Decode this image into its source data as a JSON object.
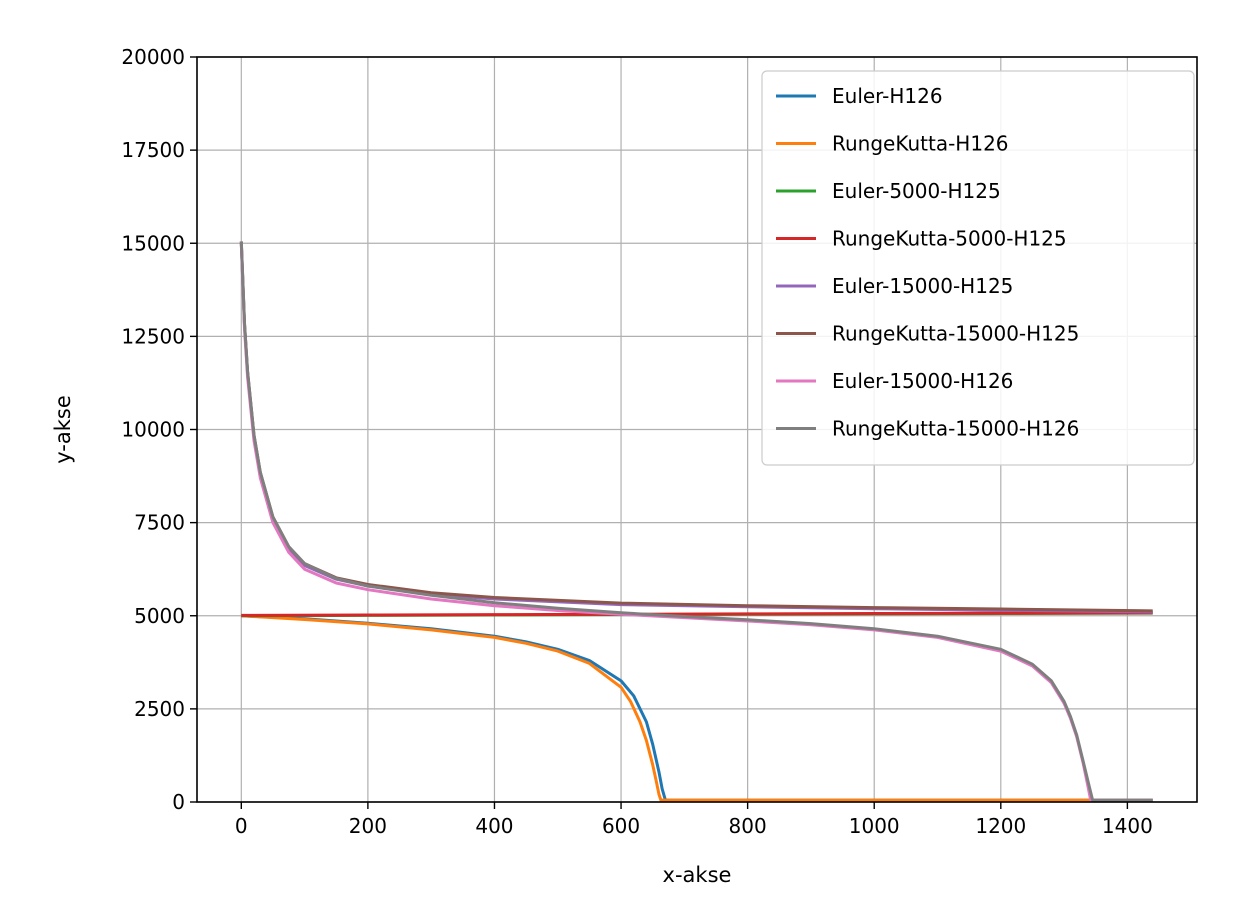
{
  "chart_data": {
    "type": "line",
    "xlabel": "x-akse",
    "ylabel": "y-akse",
    "xlim": [
      -70,
      1510
    ],
    "ylim": [
      0,
      20000
    ],
    "xticks": [
      0,
      200,
      400,
      600,
      800,
      1000,
      1200,
      1400
    ],
    "yticks": [
      0,
      2500,
      5000,
      7500,
      10000,
      12500,
      15000,
      17500,
      20000
    ],
    "grid": true,
    "legend_position": "top-right",
    "series": [
      {
        "name": "Euler-H126",
        "color": "#1f77b4",
        "x": [
          0,
          100,
          200,
          300,
          400,
          450,
          500,
          550,
          600,
          620,
          640,
          650,
          660,
          665,
          670,
          700,
          800,
          1000,
          1200,
          1440
        ],
        "y": [
          5000,
          4920,
          4800,
          4650,
          4450,
          4300,
          4100,
          3800,
          3250,
          2850,
          2150,
          1550,
          800,
          350,
          50,
          50,
          50,
          50,
          50,
          50
        ]
      },
      {
        "name": "RungeKutta-H126",
        "color": "#ff7f0e",
        "x": [
          0,
          100,
          200,
          300,
          400,
          450,
          500,
          550,
          600,
          615,
          630,
          640,
          650,
          655,
          660,
          663,
          700,
          800,
          1000,
          1200,
          1440
        ],
        "y": [
          5000,
          4900,
          4780,
          4620,
          4420,
          4260,
          4050,
          3720,
          3080,
          2700,
          2150,
          1650,
          1000,
          600,
          200,
          50,
          50,
          50,
          50,
          50,
          50
        ]
      },
      {
        "name": "Euler-5000-H125",
        "color": "#2ca02c",
        "x": [
          0,
          200,
          400,
          600,
          800,
          1000,
          1200,
          1440
        ],
        "y": [
          5000,
          5010,
          5020,
          5030,
          5040,
          5050,
          5060,
          5070
        ]
      },
      {
        "name": "RungeKutta-5000-H125",
        "color": "#d62728",
        "x": [
          0,
          200,
          400,
          600,
          800,
          1000,
          1200,
          1440
        ],
        "y": [
          5010,
          5020,
          5030,
          5040,
          5050,
          5060,
          5070,
          5080
        ]
      },
      {
        "name": "Euler-15000-H125",
        "color": "#9467bd",
        "x": [
          0,
          5,
          10,
          20,
          30,
          50,
          75,
          100,
          150,
          200,
          300,
          400,
          600,
          800,
          1000,
          1200,
          1440
        ],
        "y": [
          15000,
          12800,
          11500,
          9800,
          8800,
          7600,
          6800,
          6350,
          5980,
          5800,
          5580,
          5450,
          5300,
          5240,
          5190,
          5150,
          5100
        ]
      },
      {
        "name": "RungeKutta-15000-H125",
        "color": "#8c564b",
        "x": [
          0,
          5,
          10,
          20,
          30,
          50,
          75,
          100,
          150,
          200,
          300,
          400,
          600,
          800,
          1000,
          1200,
          1440
        ],
        "y": [
          15050,
          12850,
          11550,
          9850,
          8850,
          7650,
          6850,
          6400,
          6020,
          5840,
          5620,
          5490,
          5340,
          5270,
          5220,
          5180,
          5130
        ]
      },
      {
        "name": "Euler-15000-H126",
        "color": "#e377c2",
        "x": [
          0,
          5,
          10,
          20,
          30,
          50,
          75,
          100,
          150,
          200,
          300,
          400,
          500,
          600,
          700,
          800,
          900,
          1000,
          1100,
          1200,
          1250,
          1280,
          1300,
          1310,
          1320,
          1330,
          1338,
          1342,
          1400,
          1440
        ],
        "y": [
          15000,
          12700,
          11400,
          9700,
          8700,
          7500,
          6700,
          6250,
          5880,
          5700,
          5450,
          5270,
          5140,
          5040,
          4950,
          4860,
          4760,
          4620,
          4420,
          4050,
          3650,
          3200,
          2650,
          2250,
          1750,
          1050,
          400,
          50,
          50,
          50
        ]
      },
      {
        "name": "RungeKutta-15000-H126",
        "color": "#7f7f7f",
        "x": [
          0,
          5,
          10,
          20,
          30,
          50,
          75,
          100,
          150,
          200,
          300,
          400,
          500,
          600,
          700,
          800,
          900,
          1000,
          1100,
          1200,
          1250,
          1280,
          1300,
          1310,
          1320,
          1330,
          1340,
          1345,
          1400,
          1440
        ],
        "y": [
          15050,
          12850,
          11550,
          9850,
          8850,
          7650,
          6850,
          6400,
          6000,
          5800,
          5550,
          5350,
          5200,
          5080,
          4980,
          4890,
          4790,
          4650,
          4450,
          4100,
          3700,
          3250,
          2700,
          2300,
          1800,
          1100,
          400,
          50,
          50,
          50
        ]
      }
    ]
  }
}
